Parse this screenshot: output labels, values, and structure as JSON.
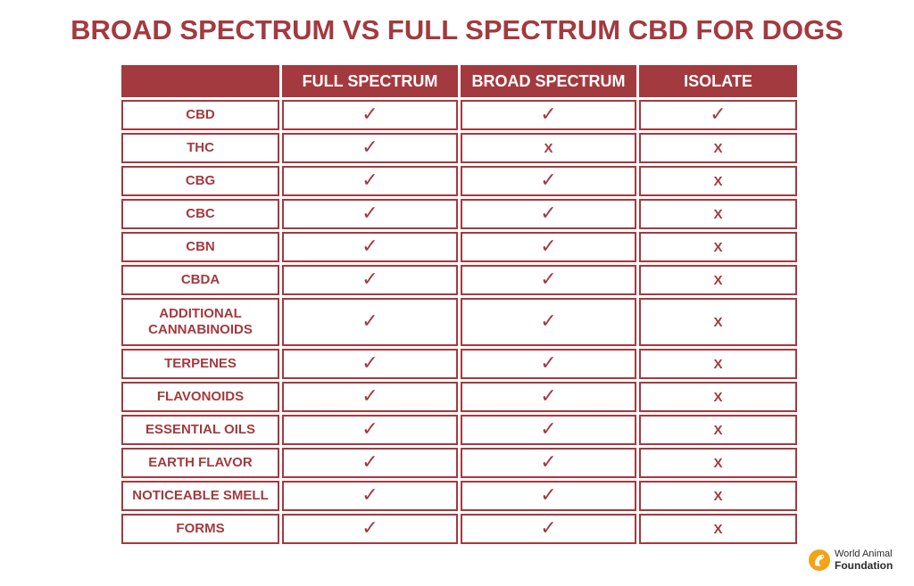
{
  "title": "BROAD SPECTRUM VS FULL SPECTRUM CBD FOR DOGS",
  "table": {
    "headers": [
      "",
      "FULL SPECTRUM",
      "BROAD SPECTRUM",
      "ISOLATE"
    ],
    "rows": [
      {
        "label": "CBD",
        "values": [
          "✓",
          "✓",
          "✓"
        ]
      },
      {
        "label": "THC",
        "values": [
          "✓",
          "X",
          "X"
        ]
      },
      {
        "label": "CBG",
        "values": [
          "✓",
          "✓",
          "X"
        ]
      },
      {
        "label": "CBC",
        "values": [
          "✓",
          "✓",
          "X"
        ]
      },
      {
        "label": "CBN",
        "values": [
          "✓",
          "✓",
          "X"
        ]
      },
      {
        "label": "CBDA",
        "values": [
          "✓",
          "✓",
          "X"
        ]
      },
      {
        "label": "ADDITIONAL CANNABINOIDS",
        "values": [
          "✓",
          "✓",
          "X"
        ]
      },
      {
        "label": "TERPENES",
        "values": [
          "✓",
          "✓",
          "X"
        ]
      },
      {
        "label": "FLAVONOIDS",
        "values": [
          "✓",
          "✓",
          "X"
        ]
      },
      {
        "label": "ESSENTIAL OILS",
        "values": [
          "✓",
          "✓",
          "X"
        ]
      },
      {
        "label": "EARTH FLAVOR",
        "values": [
          "✓",
          "✓",
          "X"
        ]
      },
      {
        "label": "NOTICEABLE SMELL",
        "values": [
          "✓",
          "✓",
          "X"
        ]
      },
      {
        "label": "FORMS",
        "values": [
          "✓",
          "✓",
          "X"
        ]
      }
    ]
  },
  "logo": {
    "line1": "World Animal",
    "line2": "Foundation",
    "icon": "world-animal-foundation-logo-icon"
  },
  "colors": {
    "accent": "#a33a3f",
    "logo_orange": "#f2a316"
  }
}
